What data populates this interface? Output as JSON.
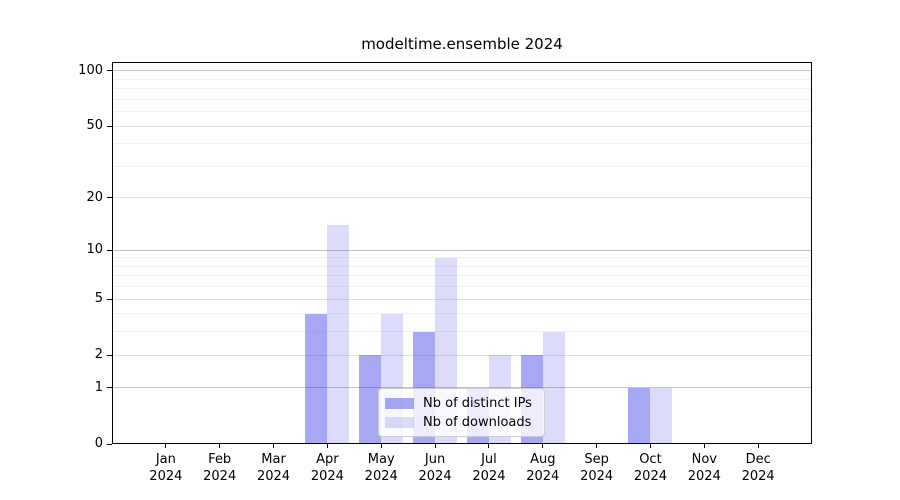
{
  "chart_data": {
    "type": "bar",
    "title": "modeltime.ensemble 2024",
    "categories": [
      "Jan 2024",
      "Feb 2024",
      "Mar 2024",
      "Apr 2024",
      "May 2024",
      "Jun 2024",
      "Jul 2024",
      "Aug 2024",
      "Sep 2024",
      "Oct 2024",
      "Nov 2024",
      "Dec 2024"
    ],
    "series": [
      {
        "name": "Nb of distinct IPs",
        "values": [
          0,
          0,
          0,
          4,
          2,
          3,
          1,
          2,
          0,
          1,
          0,
          0
        ]
      },
      {
        "name": "Nb of downloads",
        "values": [
          0,
          0,
          0,
          14,
          4,
          9,
          2,
          3,
          0,
          1,
          0,
          0
        ]
      }
    ],
    "xlabel": "",
    "ylabel": "",
    "y_axis": {
      "scale": "log10(1+x)",
      "ticks": [
        0,
        1,
        2,
        5,
        10,
        20,
        50,
        100
      ],
      "range": [
        0,
        112
      ]
    },
    "grid": {
      "on": true,
      "minor_values": [
        3,
        4,
        6,
        7,
        8,
        9,
        30,
        40,
        60,
        70,
        80,
        90
      ]
    },
    "legend_position": "inside-bottom-center"
  },
  "legend": {
    "items": [
      {
        "label": "Nb of distinct IPs",
        "color": "rgba(60,60,230,0.45)"
      },
      {
        "label": "Nb of downloads",
        "color": "rgba(60,60,230,0.18)"
      }
    ]
  }
}
